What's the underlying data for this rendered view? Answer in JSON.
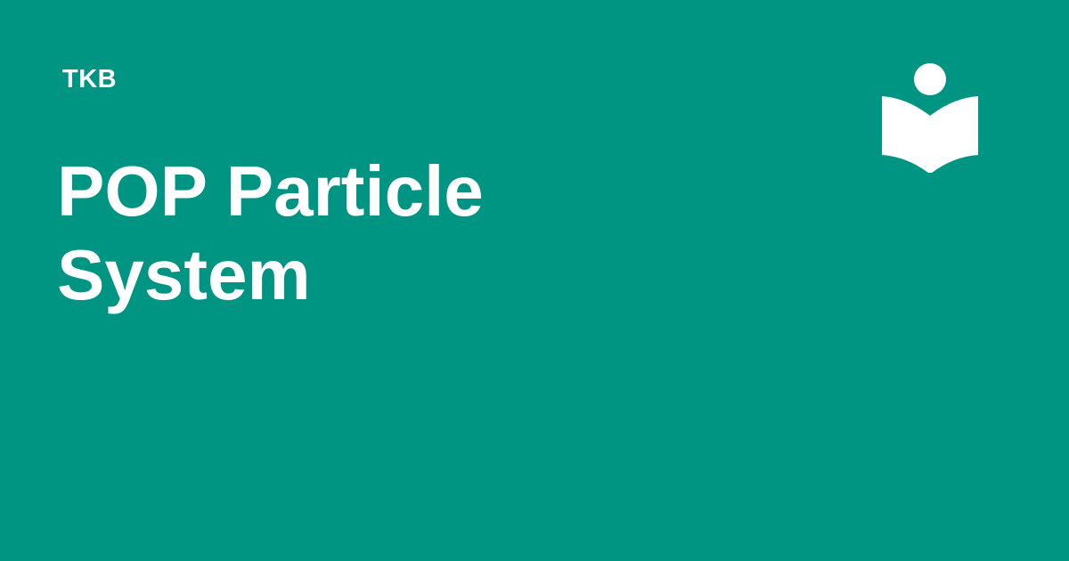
{
  "brand": {
    "site_name": "TKB",
    "logo_icon": "reader-book-icon",
    "logo_color": "#ffffff"
  },
  "page": {
    "title": "POP Particle System",
    "background_color": "#009482",
    "text_color": "#ffffff"
  }
}
